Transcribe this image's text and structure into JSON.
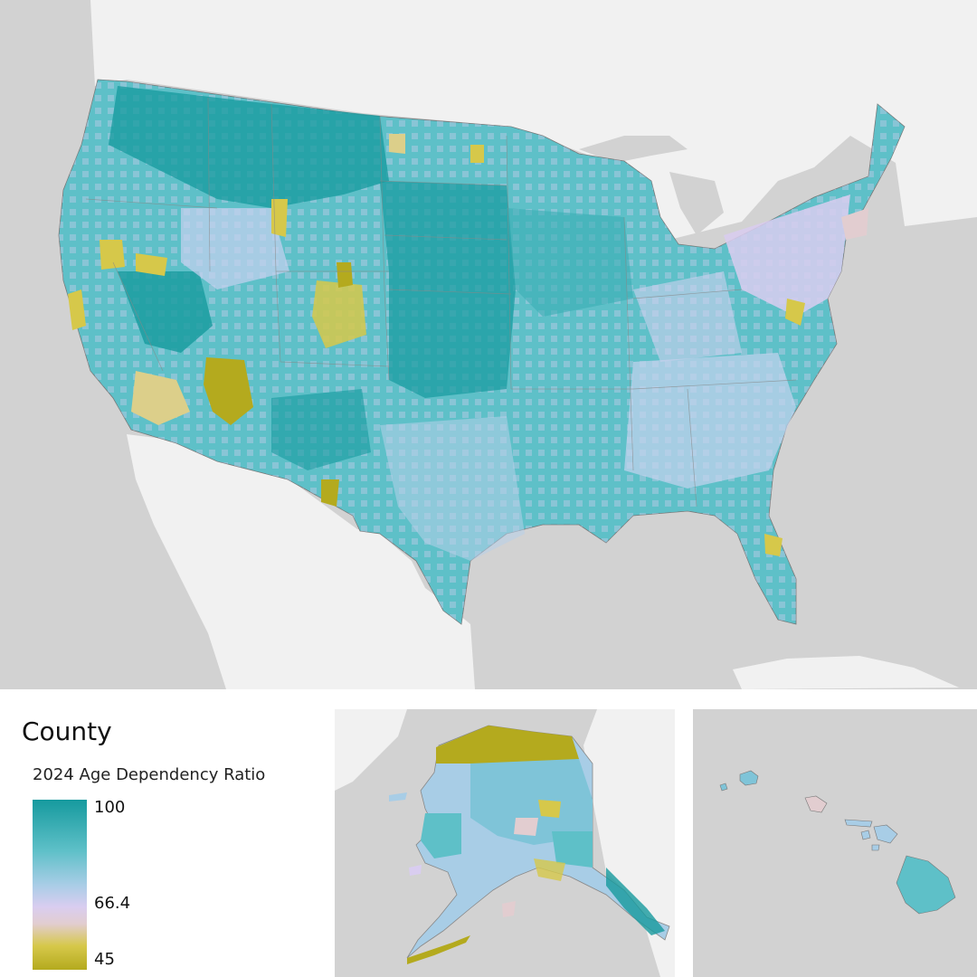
{
  "legend": {
    "title": "County",
    "subtitle": "2024 Age Dependency Ratio",
    "max_label": "100",
    "mid_label": "66.4",
    "min_label": "45",
    "max_value": 100,
    "mid_value": 66.4,
    "min_value": 45
  },
  "colors": {
    "high": "#169a9e",
    "upper": "#5ec0c8",
    "mid_high": "#a8cde6",
    "mid": "#d9cdf0",
    "mid_low": "#e2cdd0",
    "low_mid": "#d6c84a",
    "low": "#b4aa1e",
    "background": "#d2d2d2",
    "land": "#f1f1f1"
  },
  "panels": [
    "contiguous-us",
    "alaska-inset",
    "hawaii-inset"
  ]
}
